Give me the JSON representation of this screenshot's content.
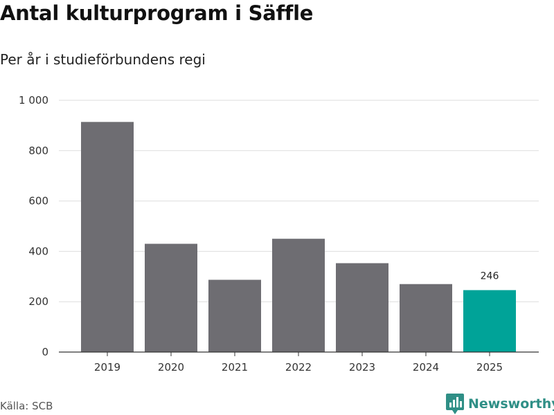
{
  "header": {
    "title": "Antal kulturprogram i Säffle",
    "subtitle": "Per år i studieförbundens regi"
  },
  "footer": {
    "source": "Källa: SCB",
    "brand": "Newsworthy"
  },
  "colors": {
    "bar": "#6e6d72",
    "highlight": "#00a398",
    "grid": "#dddddd",
    "axis": "#333333",
    "brand": "#2f8f86"
  },
  "chart_data": {
    "type": "bar",
    "title": "Antal kulturprogram i Säffle",
    "subtitle": "Per år i studieförbundens regi",
    "categories": [
      "2019",
      "2020",
      "2021",
      "2022",
      "2023",
      "2024",
      "2025"
    ],
    "values": [
      914,
      430,
      287,
      450,
      353,
      270,
      246
    ],
    "highlight_index": 6,
    "data_labels": [
      {
        "index": 6,
        "text": "246"
      }
    ],
    "yticks": [
      0,
      200,
      400,
      600,
      800,
      1000
    ],
    "ytick_labels": [
      "0",
      "200",
      "400",
      "600",
      "800",
      "1 000"
    ],
    "ylim": [
      0,
      1000
    ],
    "xlabel": "",
    "ylabel": "",
    "grid": true
  }
}
